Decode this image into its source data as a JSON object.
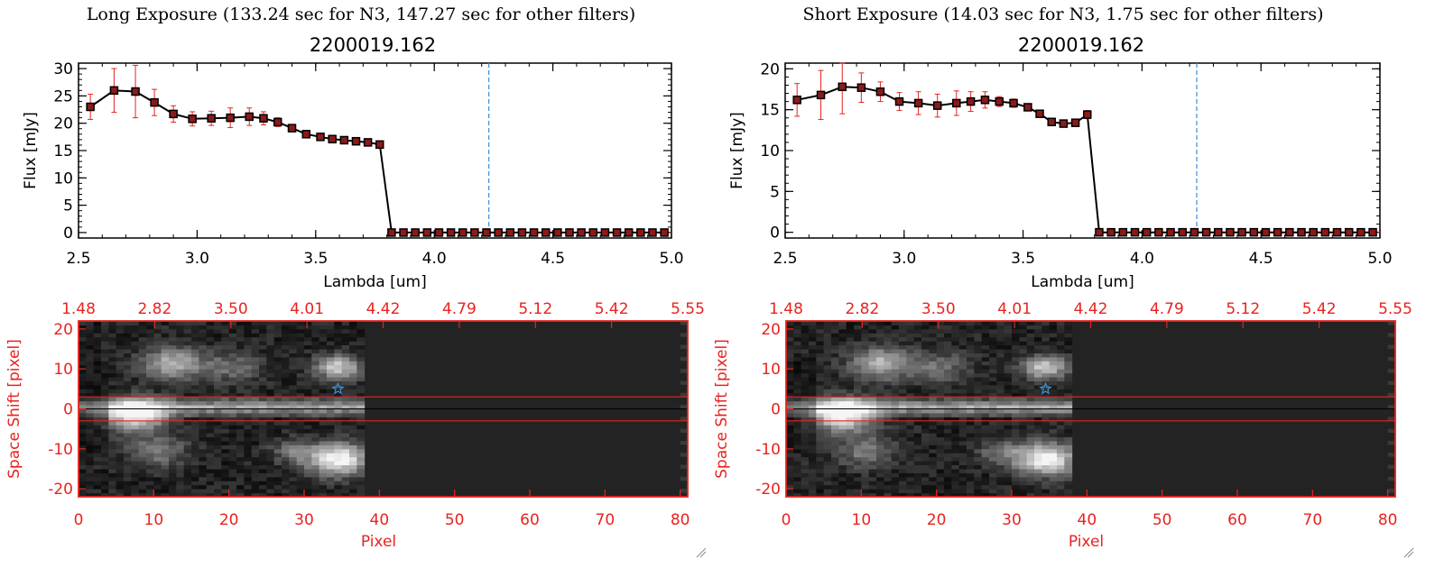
{
  "panels": [
    {
      "id": "long",
      "title": "Long Exposure (133.24 sec for N3, 147.27 sec for other filters)",
      "spectrum": {
        "object": "2200019.162",
        "ylabel": "Flux [mJy]",
        "xlabel": "Lambda [um]",
        "ylim": [
          -1,
          31
        ],
        "yticks": [
          "0",
          "5",
          "10",
          "15",
          "20",
          "25",
          "30"
        ],
        "xlim": [
          2.5,
          5.0
        ],
        "xticks": [
          "2.5",
          "3.0",
          "3.5",
          "4.0",
          "4.5",
          "5.0"
        ]
      },
      "image": {
        "ylabel": "Space Shift [pixel]",
        "xlabel": "Pixel",
        "xlim": [
          0,
          81
        ],
        "xticks": [
          "0",
          "10",
          "20",
          "30",
          "40",
          "50",
          "60",
          "70",
          "80"
        ],
        "ylim": [
          -22,
          22
        ],
        "yticks": [
          "20",
          "10",
          "0",
          "-10",
          "-20"
        ],
        "top_ticks": [
          "1.48",
          "2.82",
          "3.50",
          "4.01",
          "4.42",
          "4.79",
          "5.12",
          "5.42",
          "5.55"
        ]
      }
    },
    {
      "id": "short",
      "title": "Short Exposure (14.03 sec for N3, 1.75 sec for other filters)",
      "spectrum": {
        "object": "2200019.162",
        "ylabel": "Flux [mJy]",
        "xlabel": "Lambda [um]",
        "ylim": [
          -0.7,
          20.7
        ],
        "yticks": [
          "0",
          "5",
          "10",
          "15",
          "20"
        ],
        "xlim": [
          2.5,
          5.0
        ],
        "xticks": [
          "2.5",
          "3.0",
          "3.5",
          "4.0",
          "4.5",
          "5.0"
        ]
      },
      "image": {
        "ylabel": "Space Shift [pixel]",
        "xlabel": "Pixel",
        "xlim": [
          0,
          81
        ],
        "xticks": [
          "0",
          "10",
          "20",
          "30",
          "40",
          "50",
          "60",
          "70",
          "80"
        ],
        "ylim": [
          -22,
          22
        ],
        "yticks": [
          "20",
          "10",
          "0",
          "-10",
          "-20"
        ],
        "top_ticks": [
          "1.48",
          "2.82",
          "3.50",
          "4.01",
          "4.42",
          "4.79",
          "5.12",
          "5.42",
          "5.55"
        ]
      }
    }
  ],
  "colors": {
    "axis": "#000000",
    "errorbar": "#e8231f",
    "marker_fill": "#8b1a1a",
    "dashed_line": "#3a8fd6",
    "image_axis": "#e8231f",
    "star": "#3a8fd6"
  },
  "chart_data": [
    {
      "type": "line",
      "title": "2200019.162",
      "xlabel": "Lambda [um]",
      "ylabel": "Flux [mJy]",
      "xlim": [
        2.5,
        5.0
      ],
      "ylim": [
        -1,
        31
      ],
      "vline_x": 4.23,
      "series": [
        {
          "x": [
            2.55,
            2.65,
            2.74,
            2.82,
            2.9,
            2.98,
            3.06,
            3.14,
            3.22,
            3.28,
            3.34,
            3.4,
            3.46,
            3.52,
            3.57,
            3.62,
            3.67,
            3.72,
            3.77,
            3.82,
            3.87,
            3.92,
            3.97,
            4.02,
            4.07,
            4.12,
            4.17,
            4.22,
            4.27,
            4.32,
            4.37,
            4.42,
            4.47,
            4.52,
            4.57,
            4.62,
            4.67,
            4.72,
            4.77,
            4.82,
            4.87,
            4.92,
            4.97
          ],
          "y": [
            23,
            26,
            25.8,
            23.8,
            21.7,
            20.8,
            20.9,
            21.0,
            21.2,
            20.9,
            20.2,
            19.1,
            18.0,
            17.5,
            17.1,
            16.9,
            16.7,
            16.5,
            16.1,
            0,
            0,
            0,
            0,
            0,
            0,
            0,
            0,
            0,
            0,
            0,
            0,
            0,
            0,
            0,
            0,
            0,
            0,
            0,
            0,
            0,
            0,
            0,
            0
          ],
          "err": [
            2.3,
            4.0,
            4.8,
            2.4,
            1.5,
            1.3,
            1.3,
            1.8,
            1.6,
            1.2,
            0.8,
            0.6,
            0.5,
            0.4,
            0.4,
            0.4,
            0.4,
            0.4,
            0.4,
            0,
            0,
            0,
            0,
            0,
            0,
            0,
            0,
            0,
            0,
            0,
            0,
            0,
            0,
            0,
            0,
            0,
            0,
            0,
            0,
            0,
            0,
            0,
            0
          ]
        }
      ]
    },
    {
      "type": "line",
      "title": "2200019.162",
      "xlabel": "Lambda [um]",
      "ylabel": "Flux [mJy]",
      "xlim": [
        2.5,
        5.0
      ],
      "ylim": [
        -0.7,
        20.7
      ],
      "vline_x": 4.23,
      "series": [
        {
          "x": [
            2.55,
            2.65,
            2.74,
            2.82,
            2.9,
            2.98,
            3.06,
            3.14,
            3.22,
            3.28,
            3.34,
            3.4,
            3.46,
            3.52,
            3.57,
            3.62,
            3.67,
            3.72,
            3.77,
            3.82,
            3.87,
            3.92,
            3.97,
            4.02,
            4.07,
            4.12,
            4.17,
            4.22,
            4.27,
            4.32,
            4.37,
            4.42,
            4.47,
            4.52,
            4.57,
            4.62,
            4.67,
            4.72,
            4.77,
            4.82,
            4.87,
            4.92,
            4.97
          ],
          "y": [
            16.2,
            16.8,
            17.8,
            17.7,
            17.2,
            16.0,
            15.8,
            15.5,
            15.8,
            16.0,
            16.2,
            16.0,
            15.8,
            15.3,
            14.5,
            13.5,
            13.3,
            13.4,
            14.4,
            0,
            0,
            0,
            0,
            0,
            0,
            0,
            0,
            0,
            0,
            0,
            0,
            0,
            0,
            0,
            0,
            0,
            0,
            0,
            0,
            0,
            0,
            0,
            0
          ],
          "err": [
            2.0,
            3.0,
            3.3,
            1.8,
            1.2,
            1.1,
            1.4,
            1.4,
            1.5,
            1.2,
            1.0,
            0.6,
            0.5,
            0.4,
            0.3,
            0.3,
            0.3,
            0.3,
            0.5,
            0,
            0,
            0,
            0,
            0,
            0,
            0,
            0,
            0,
            0,
            0,
            0,
            0,
            0,
            0,
            0,
            0,
            0,
            0,
            0,
            0,
            0,
            0,
            0
          ]
        }
      ]
    },
    {
      "type": "heatmap",
      "xlabel": "Pixel",
      "ylabel": "Space Shift [pixel]",
      "xlim": [
        0,
        81
      ],
      "ylim": [
        -22,
        22
      ],
      "aperture_y": [
        -3,
        3
      ],
      "star": {
        "x": 34.5,
        "y": 5
      },
      "signal_extent_x": 38
    },
    {
      "type": "heatmap",
      "xlabel": "Pixel",
      "ylabel": "Space Shift [pixel]",
      "xlim": [
        0,
        81
      ],
      "ylim": [
        -22,
        22
      ],
      "aperture_y": [
        -3,
        3
      ],
      "star": {
        "x": 34.5,
        "y": 5
      },
      "signal_extent_x": 38
    }
  ]
}
